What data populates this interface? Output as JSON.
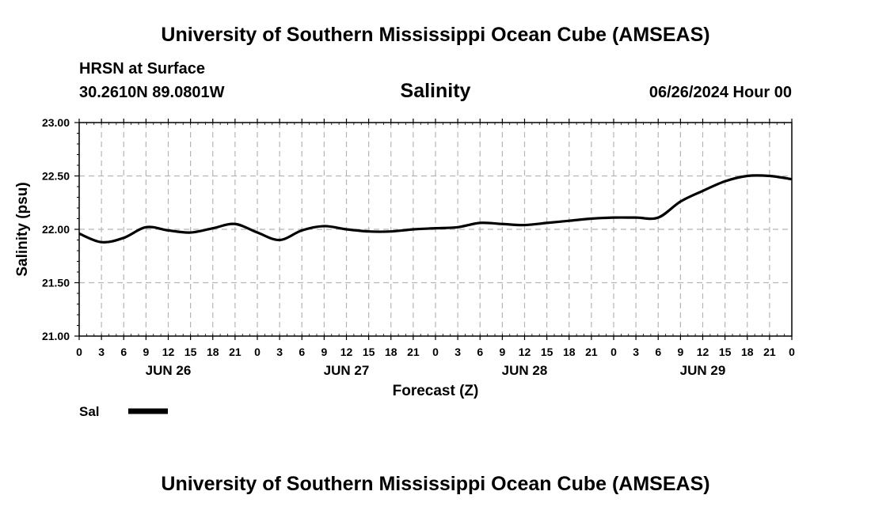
{
  "header": {
    "title": "University of Southern Mississippi Ocean Cube (AMSEAS)",
    "station": "HRSN at Surface",
    "coords": "30.2610N  89.0801W",
    "parameter": "Salinity",
    "run_time": "06/26/2024 Hour 00"
  },
  "footer": {
    "title": "University of Southern Mississippi Ocean Cube (AMSEAS)"
  },
  "chart_data": {
    "type": "line",
    "title": "Salinity",
    "xlabel": "Forecast (Z)",
    "ylabel": "Salinity (psu)",
    "xlim": [
      0,
      96
    ],
    "ylim": [
      21.0,
      23.0
    ],
    "y_ticks": [
      "21.00",
      "21.50",
      "22.00",
      "22.50",
      "23.00"
    ],
    "x_tick_labels": [
      "0",
      "3",
      "6",
      "9",
      "12",
      "15",
      "18",
      "21",
      "0",
      "3",
      "6",
      "9",
      "12",
      "15",
      "18",
      "21",
      "0",
      "3",
      "6",
      "9",
      "12",
      "15",
      "18",
      "21",
      "0",
      "3",
      "6",
      "9",
      "12",
      "15",
      "18",
      "21",
      "0"
    ],
    "day_labels": [
      {
        "label": "JUN 26",
        "hour": 12
      },
      {
        "label": "JUN 27",
        "hour": 36
      },
      {
        "label": "JUN 28",
        "hour": 60
      },
      {
        "label": "JUN 29",
        "hour": 84
      }
    ],
    "grid": true,
    "legend": "bottom-left",
    "series": [
      {
        "name": "Sal",
        "color": "#000000",
        "x": [
          0,
          3,
          6,
          9,
          12,
          15,
          18,
          21,
          24,
          27,
          30,
          33,
          36,
          39,
          42,
          45,
          48,
          51,
          54,
          57,
          60,
          63,
          66,
          69,
          72,
          75,
          78,
          81,
          84,
          87,
          90,
          93,
          96
        ],
        "values": [
          21.96,
          21.88,
          21.92,
          22.02,
          21.99,
          21.97,
          22.01,
          22.05,
          21.97,
          21.9,
          21.99,
          22.03,
          22.0,
          21.98,
          21.98,
          22.0,
          22.01,
          22.02,
          22.06,
          22.05,
          22.04,
          22.06,
          22.08,
          22.1,
          22.11,
          22.11,
          22.11,
          22.26,
          22.36,
          22.45,
          22.5,
          22.5,
          22.47
        ]
      }
    ]
  }
}
